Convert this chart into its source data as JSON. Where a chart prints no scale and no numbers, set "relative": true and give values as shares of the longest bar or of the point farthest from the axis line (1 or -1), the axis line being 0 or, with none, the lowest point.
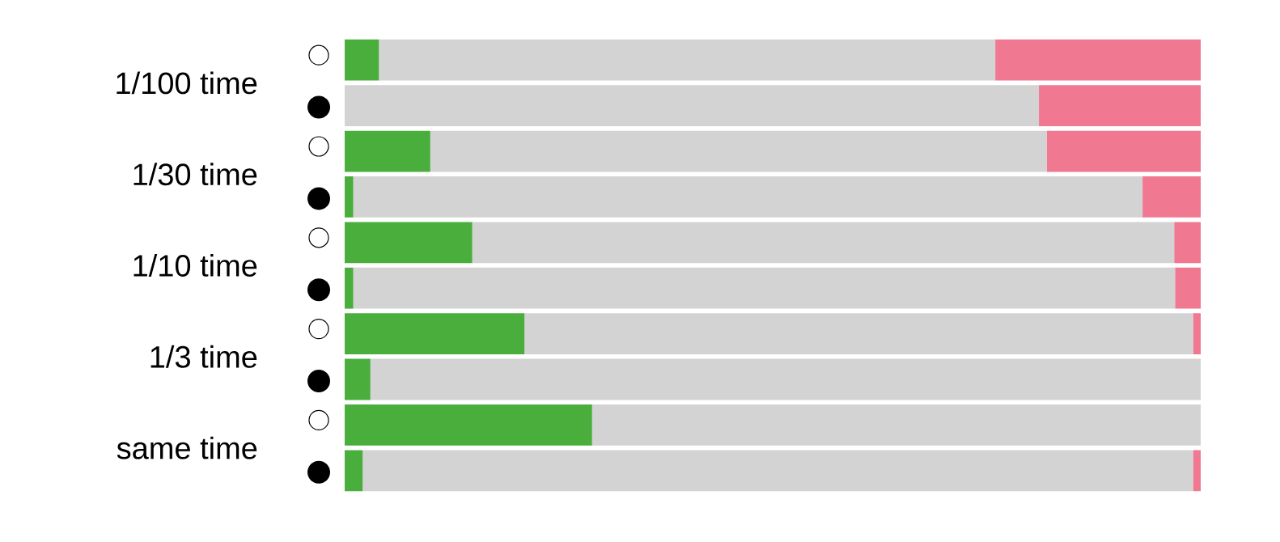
{
  "chart_data": {
    "type": "bar",
    "orientation": "horizontal",
    "stacked": true,
    "relative": true,
    "categories": [
      "1/100 time",
      null,
      "1/30 time",
      null,
      "1/10 time",
      null,
      "1/3 time",
      null,
      "same time",
      null
    ],
    "series": [
      {
        "color": "#4aae3c",
        "values": [
          0.04,
          0,
          0.1,
          0.01,
          0.149,
          0.01,
          0.21,
          0.03,
          0.289,
          0.021
        ]
      },
      {
        "color": "#d3d3d3",
        "values": [
          0.72,
          0.811,
          0.72,
          0.922,
          0.82,
          0.96,
          0.781,
          0.97,
          0.711,
          0.97
        ]
      },
      {
        "color": "#f07890",
        "values": [
          0.24,
          0.189,
          0.18,
          0.068,
          0.031,
          0.03,
          0.009,
          0,
          0,
          0.009
        ]
      }
    ]
  }
}
